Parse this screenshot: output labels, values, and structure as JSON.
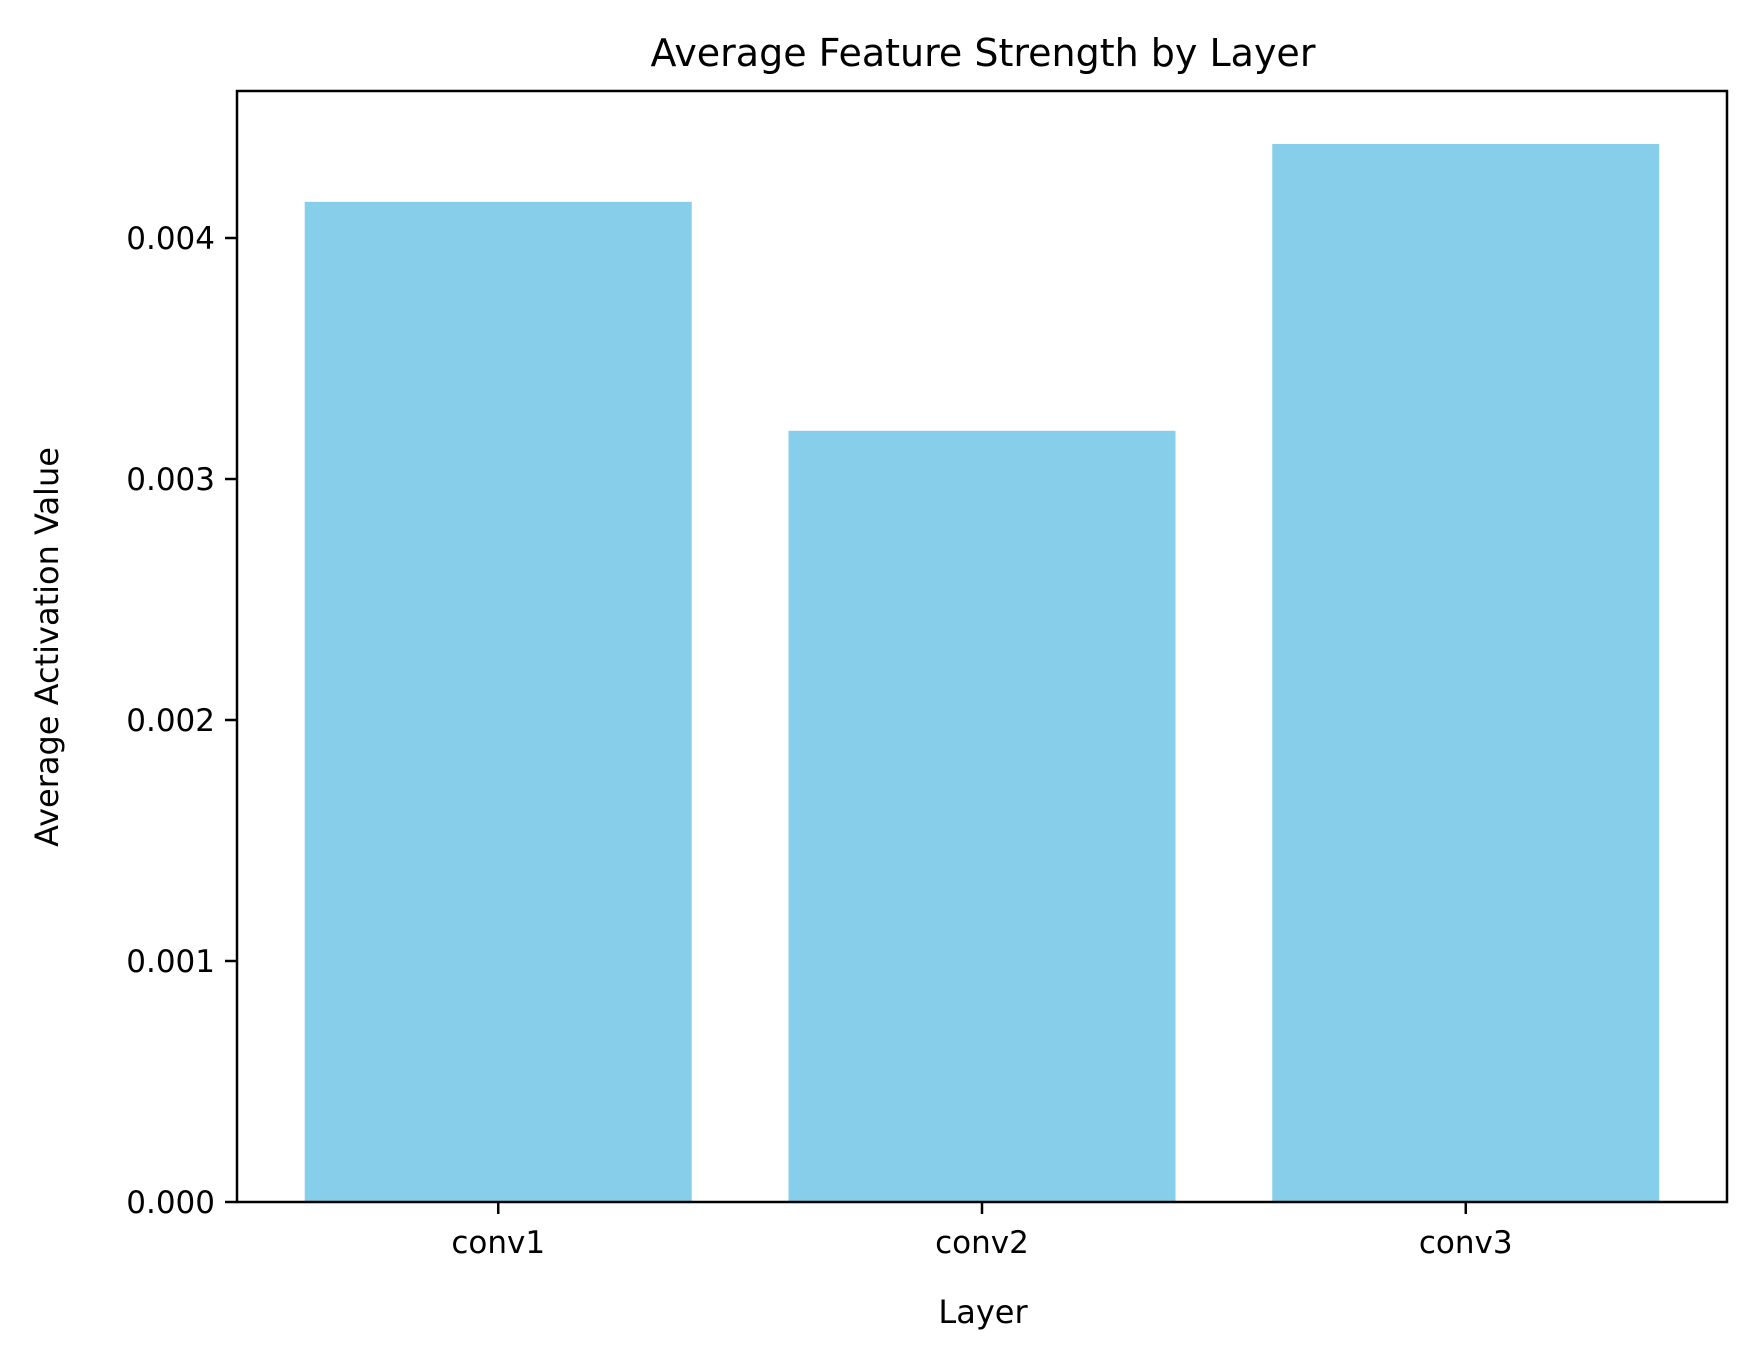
{
  "chart_data": {
    "type": "bar",
    "title": "Average Feature Strength by Layer",
    "xlabel": "Layer",
    "ylabel": "Average Activation Value",
    "categories": [
      "conv1",
      "conv2",
      "conv3"
    ],
    "values": [
      0.00415,
      0.0032,
      0.00439
    ],
    "ylim": [
      0,
      0.00461
    ],
    "yticks": [
      0.0,
      0.001,
      0.002,
      0.003,
      0.004
    ],
    "ytick_labels": [
      "0.000",
      "0.001",
      "0.002",
      "0.003",
      "0.004"
    ],
    "grid": false,
    "legend": "none",
    "bar_color": "#87ceeb"
  }
}
